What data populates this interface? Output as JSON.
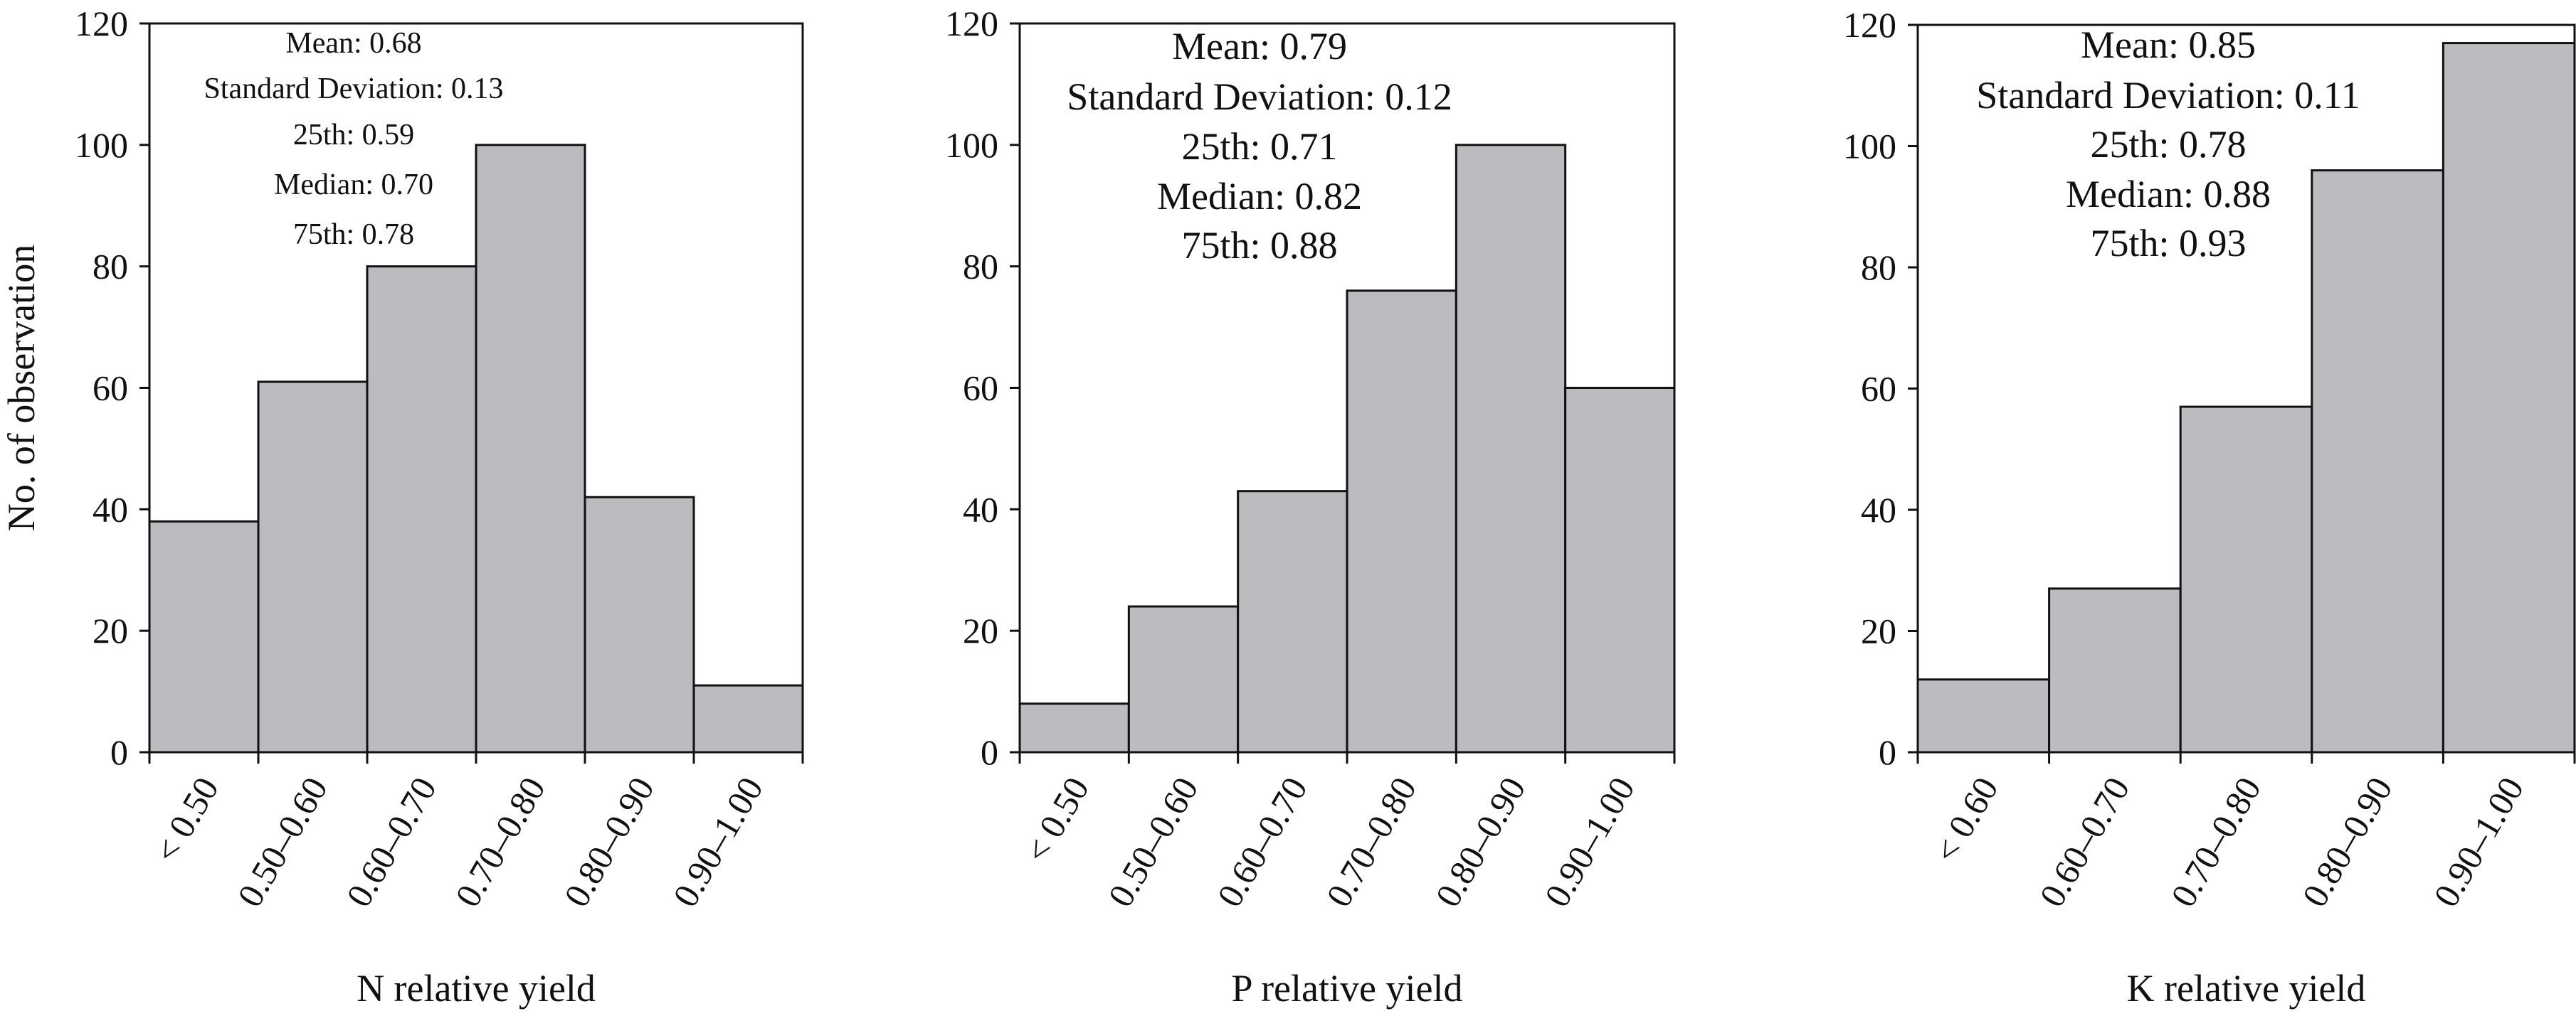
{
  "chart_data": [
    {
      "type": "bar",
      "title": "",
      "xlabel": "N relative yield",
      "ylabel": "No. of observation",
      "categories": [
        "< 0.50",
        "0.50–0.60",
        "0.60–0.70",
        "0.70–0.80",
        "0.80–0.90",
        "0.90–1.00"
      ],
      "values": [
        38,
        61,
        80,
        100,
        42,
        11
      ],
      "ylim": [
        0,
        120
      ],
      "yticks": [
        0,
        20,
        40,
        60,
        80,
        100,
        120
      ],
      "bar_color": "#bcbbbf",
      "stats": [
        "Mean: 0.68",
        "Standard Deviation: 0.13",
        "25th: 0.59",
        "Median: 0.70",
        "75th: 0.78"
      ]
    },
    {
      "type": "bar",
      "title": "",
      "xlabel": "P relative yield",
      "ylabel": "",
      "categories": [
        "< 0.50",
        "0.50–0.60",
        "0.60–0.70",
        "0.70–0.80",
        "0.80–0.90",
        "0.90–1.00"
      ],
      "values": [
        8,
        24,
        43,
        76,
        100,
        60
      ],
      "ylim": [
        0,
        120
      ],
      "yticks": [
        0,
        20,
        40,
        60,
        80,
        100,
        120
      ],
      "bar_color": "#bcbbbf",
      "stats": [
        "Mean: 0.79",
        "Standard Deviation: 0.12",
        "25th: 0.71",
        "Median: 0.82",
        "75th: 0.88"
      ]
    },
    {
      "type": "bar",
      "title": "",
      "xlabel": "K relative yield",
      "ylabel": "",
      "categories": [
        "< 0.60",
        "0.60–0.70",
        "0.70–0.80",
        "0.80–0.90",
        "0.90–1.00"
      ],
      "values": [
        12,
        27,
        57,
        96,
        117
      ],
      "ylim": [
        0,
        120
      ],
      "yticks": [
        0,
        20,
        40,
        60,
        80,
        100,
        120
      ],
      "bar_color": "#bcbbbf",
      "stats": [
        "Mean: 0.85",
        "Standard Deviation: 0.11",
        "25th: 0.78",
        "Median: 0.88",
        "75th: 0.93"
      ]
    }
  ]
}
